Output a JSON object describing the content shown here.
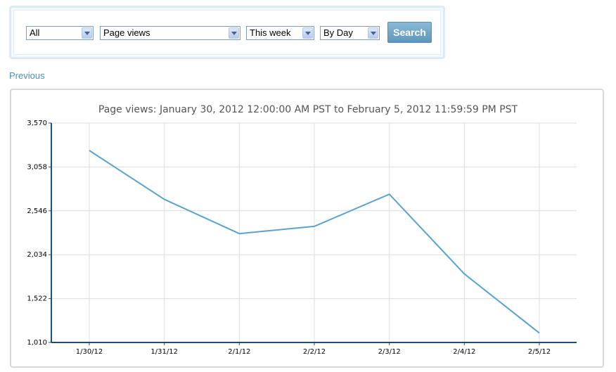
{
  "filters": {
    "scope": "All",
    "metric": "Page views",
    "period": "This week",
    "granularity": "By Day",
    "search_label": "Search"
  },
  "nav": {
    "previous_label": "Previous"
  },
  "colors": {
    "line": "#5ba3cf",
    "axis": "#1f4e79",
    "grid": "#dddddd"
  },
  "chart_data": {
    "type": "line",
    "title": "Page views: January 30, 2012 12:00:00 AM PST to February 5, 2012 11:59:59 PM PST",
    "xlabel": "",
    "ylabel": "",
    "categories": [
      "1/30/12",
      "1/31/12",
      "2/1/12",
      "2/2/12",
      "2/3/12",
      "2/4/12",
      "2/5/12"
    ],
    "values": [
      3250,
      2680,
      2280,
      2365,
      2740,
      1810,
      1120
    ],
    "yticks": [
      "1,010",
      "1,522",
      "2,034",
      "2,546",
      "3,058",
      "3,570"
    ],
    "ylim": [
      1010,
      3570
    ],
    "grid": true,
    "legend": "none"
  }
}
